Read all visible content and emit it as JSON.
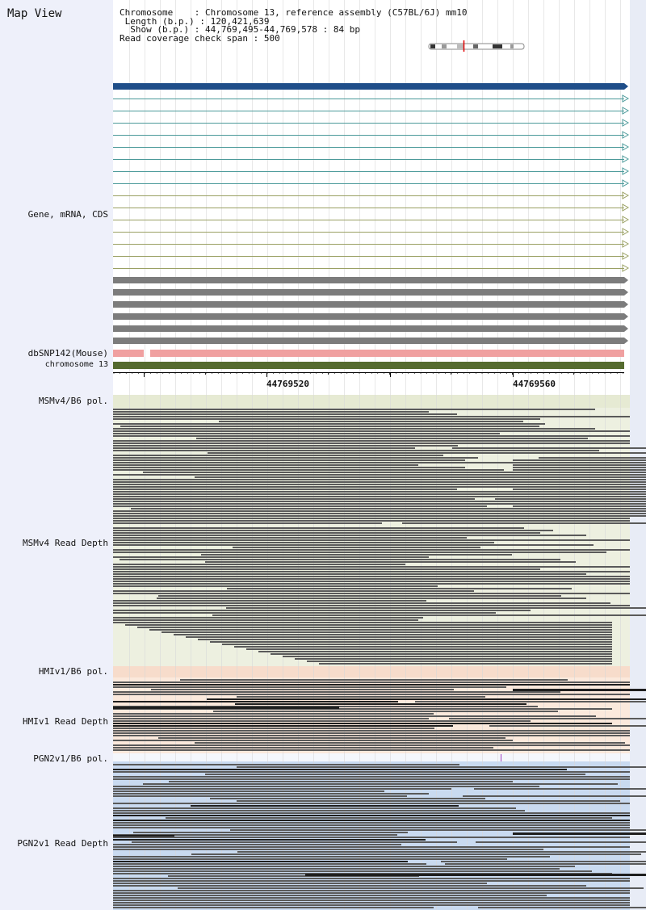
{
  "map_view_title": "Map View",
  "info": {
    "chromosome_key": "Chromosome",
    "chromosome_value": "Chromosome 13, reference assembly (C57BL/6J) mm10",
    "length_key": "Length (b.p.)",
    "length_value": "120,421,639",
    "show_key": "Show (b.p.)",
    "show_value": "44,769,495-44,769,578 : 84 bp",
    "span_key": "Read coverage check span",
    "span_value": "500"
  },
  "tracks": {
    "gene_label": "Gene, mRNA, CDS",
    "dbsnp_label": "dbSNP142(Mouse)",
    "chromosome_label": "chromosome 13"
  },
  "ruler": {
    "tick1": "44769520",
    "tick2": "44769560"
  },
  "strains": {
    "msm_pol": "MSMv4/B6 pol.",
    "msm_depth": "MSMv4 Read Depth",
    "hmi_pol": "HMIv1/B6 pol.",
    "hmi_depth": "HMIv1 Read Depth",
    "pgn_pol": "PGN2v1/B6 pol.",
    "pgn_depth": "PGN2v1 Read Depth"
  },
  "colors": {
    "gene_primary": "#1f4e89",
    "mrna_teal": "#4c9a9a",
    "mrna_olive": "#9aa063",
    "cds_grey": "#7c7c7c",
    "snp_pink": "#f0a0a0",
    "chromosome_green": "#556b2f",
    "msm_bg": "#edf0e0",
    "hmi_bg": "#fbe9dc",
    "pgn_bg": "#c9daf0",
    "read": "#5a5a5a"
  }
}
